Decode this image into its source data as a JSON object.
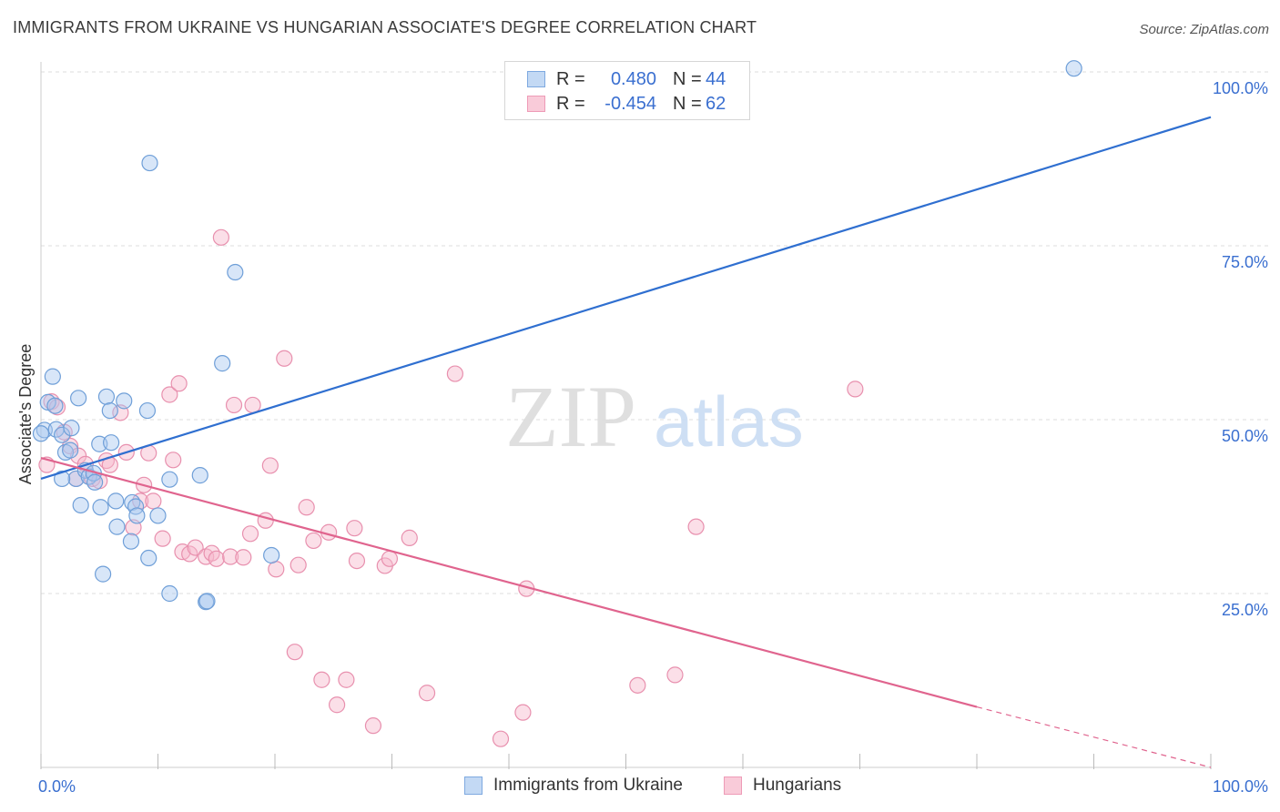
{
  "header": {
    "title": "IMMIGRANTS FROM UKRAINE VS HUNGARIAN ASSOCIATE'S DEGREE CORRELATION CHART",
    "source": "Source: ZipAtlas.com"
  },
  "legend_top": [
    {
      "r_label": "R =",
      "r_value": "0.480",
      "n_label": "N =",
      "n_value": "44"
    },
    {
      "r_label": "R =",
      "r_value": "-0.454",
      "n_label": "N =",
      "n_value": "62"
    }
  ],
  "colors": {
    "ukraine_fill": "#a9c8ef",
    "ukraine_stroke": "#6f9fd8",
    "ukraine_line": "#2f6fd0",
    "hungarian_fill": "#f6b8cc",
    "hungarian_stroke": "#e890ae",
    "hungarian_line": "#e0648e",
    "tick_label": "#3a6fd0",
    "grid": "#dddddd"
  },
  "chart_data": {
    "type": "scatter",
    "title": "IMMIGRANTS FROM UKRAINE VS HUNGARIAN ASSOCIATE'S DEGREE CORRELATION CHART",
    "xlabel": "",
    "ylabel": "Associate's Degree",
    "xlim": [
      0,
      100
    ],
    "ylim": [
      0,
      100
    ],
    "x_tick_labels": [
      "0.0%",
      "100.0%"
    ],
    "y_ticks": [
      25,
      50,
      75,
      100
    ],
    "y_tick_labels": [
      "25.0%",
      "50.0%",
      "75.0%",
      "100.0%"
    ],
    "watermark": {
      "zip": "ZIP",
      "atlas": "atlas"
    },
    "series": [
      {
        "name": "Immigrants from Ukraine",
        "legend_label": "Immigrants from Ukraine",
        "trend": {
          "x0": 0,
          "y0": 41.5,
          "x1": 100,
          "y1": 93.5
        },
        "points": [
          [
            0.3,
            48.5
          ],
          [
            0.6,
            52.5
          ],
          [
            1.0,
            56.2
          ],
          [
            1.2,
            52.0
          ],
          [
            1.3,
            48.6
          ],
          [
            1.8,
            47.8
          ],
          [
            2.1,
            45.3
          ],
          [
            2.5,
            45.6
          ],
          [
            2.6,
            48.8
          ],
          [
            3.2,
            53.1
          ],
          [
            3.0,
            41.5
          ],
          [
            3.4,
            37.7
          ],
          [
            3.8,
            42.7
          ],
          [
            4.1,
            41.8
          ],
          [
            4.5,
            42.3
          ],
          [
            4.6,
            41.0
          ],
          [
            5.0,
            46.5
          ],
          [
            5.1,
            37.4
          ],
          [
            5.3,
            27.8
          ],
          [
            5.6,
            53.3
          ],
          [
            5.9,
            51.3
          ],
          [
            6.0,
            46.7
          ],
          [
            6.4,
            38.3
          ],
          [
            6.5,
            34.6
          ],
          [
            7.1,
            52.7
          ],
          [
            7.7,
            32.5
          ],
          [
            7.8,
            38.1
          ],
          [
            8.1,
            37.5
          ],
          [
            8.2,
            36.2
          ],
          [
            9.1,
            51.3
          ],
          [
            9.2,
            30.1
          ],
          [
            9.3,
            86.9
          ],
          [
            10.0,
            36.2
          ],
          [
            11.0,
            41.4
          ],
          [
            13.6,
            42.0
          ],
          [
            14.1,
            23.8
          ],
          [
            14.2,
            23.9
          ],
          [
            15.5,
            58.1
          ],
          [
            16.6,
            71.2
          ],
          [
            19.7,
            30.5
          ],
          [
            11.0,
            25.0
          ],
          [
            88.3,
            100.5
          ],
          [
            0.0,
            48.0
          ],
          [
            1.8,
            41.5
          ]
        ]
      },
      {
        "name": "Hungarians",
        "legend_label": "Hungarians",
        "trend": {
          "x0": 0,
          "y0": 44.5,
          "x1": 80,
          "y1": 8.7,
          "dash_x1": 100,
          "dash_y1": 0
        },
        "points": [
          [
            0.5,
            43.5
          ],
          [
            0.9,
            52.6
          ],
          [
            1.4,
            51.8
          ],
          [
            2.0,
            48.2
          ],
          [
            2.5,
            46.2
          ],
          [
            3.0,
            41.5
          ],
          [
            3.2,
            44.8
          ],
          [
            3.8,
            43.6
          ],
          [
            4.4,
            41.5
          ],
          [
            5.0,
            41.2
          ],
          [
            5.6,
            44.1
          ],
          [
            5.9,
            43.5
          ],
          [
            6.8,
            51.0
          ],
          [
            7.3,
            45.3
          ],
          [
            7.9,
            34.5
          ],
          [
            8.5,
            38.3
          ],
          [
            8.8,
            40.6
          ],
          [
            9.2,
            45.2
          ],
          [
            9.6,
            38.3
          ],
          [
            10.4,
            32.9
          ],
          [
            11.0,
            53.6
          ],
          [
            11.3,
            44.2
          ],
          [
            11.8,
            55.2
          ],
          [
            12.1,
            31.0
          ],
          [
            12.7,
            30.7
          ],
          [
            13.2,
            31.6
          ],
          [
            14.1,
            30.3
          ],
          [
            14.6,
            30.8
          ],
          [
            15.0,
            30.0
          ],
          [
            15.4,
            76.2
          ],
          [
            16.2,
            30.3
          ],
          [
            16.5,
            52.1
          ],
          [
            17.3,
            30.2
          ],
          [
            17.9,
            33.6
          ],
          [
            18.1,
            52.1
          ],
          [
            19.2,
            35.5
          ],
          [
            19.6,
            43.4
          ],
          [
            20.1,
            28.5
          ],
          [
            20.8,
            58.8
          ],
          [
            21.7,
            16.6
          ],
          [
            22.0,
            29.1
          ],
          [
            22.7,
            37.4
          ],
          [
            23.3,
            32.6
          ],
          [
            24.0,
            12.6
          ],
          [
            24.6,
            33.8
          ],
          [
            25.3,
            9.0
          ],
          [
            26.1,
            12.6
          ],
          [
            26.8,
            34.4
          ],
          [
            27.0,
            29.7
          ],
          [
            28.4,
            6.0
          ],
          [
            29.4,
            29.0
          ],
          [
            29.8,
            30.0
          ],
          [
            31.5,
            33.0
          ],
          [
            33.0,
            10.7
          ],
          [
            35.4,
            56.6
          ],
          [
            39.3,
            4.1
          ],
          [
            41.2,
            7.9
          ],
          [
            41.5,
            25.7
          ],
          [
            51.0,
            11.8
          ],
          [
            54.2,
            13.3
          ],
          [
            56.0,
            34.6
          ],
          [
            69.6,
            54.4
          ]
        ]
      }
    ]
  }
}
